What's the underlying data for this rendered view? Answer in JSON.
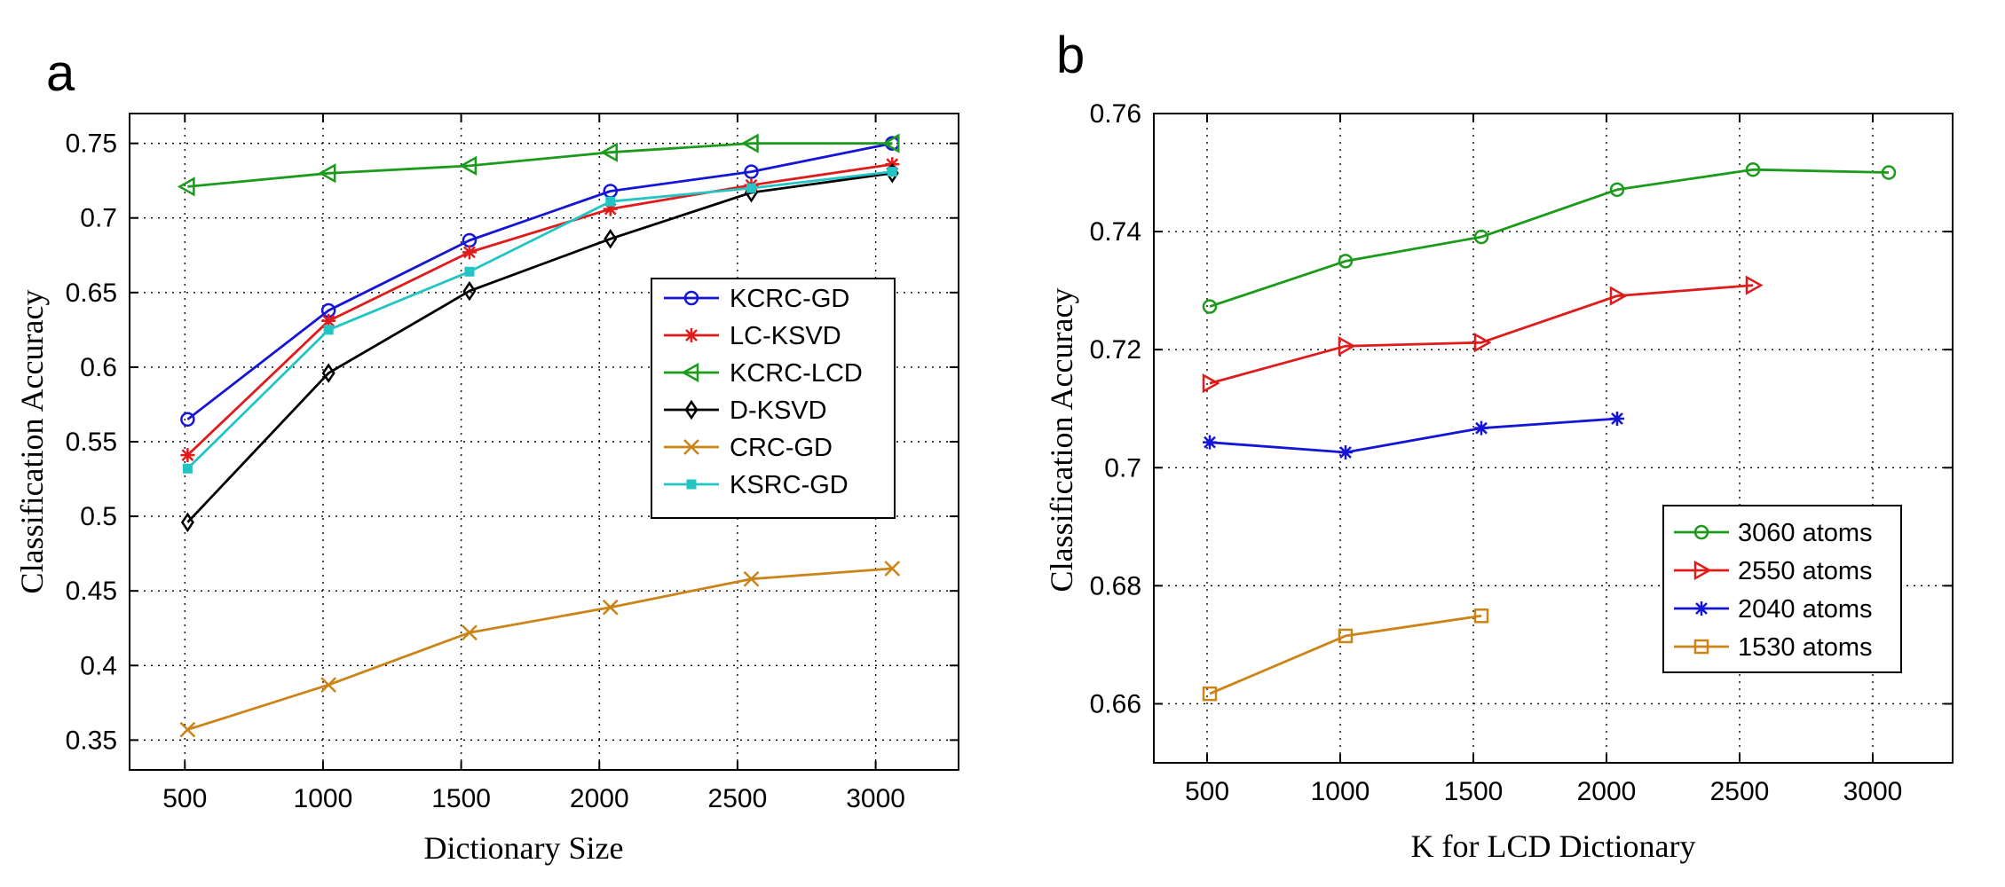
{
  "chart_data": [
    {
      "panel_label": "a",
      "type": "line",
      "title": "",
      "xlabel": "Dictionary Size",
      "ylabel": "Classification Accuracy",
      "xlim": [
        300,
        3300
      ],
      "ylim": [
        0.33,
        0.77
      ],
      "xticks": [
        500,
        1000,
        1500,
        2000,
        2500,
        3000
      ],
      "xtick_labels": [
        "500",
        "1000",
        "1500",
        "2000",
        "2500",
        "3000"
      ],
      "yticks": [
        0.35,
        0.4,
        0.45,
        0.5,
        0.55,
        0.6,
        0.65,
        0.7,
        0.75
      ],
      "ytick_labels": [
        "0.35",
        "0.4",
        "0.45",
        "0.5",
        "0.55",
        "0.6",
        "0.65",
        "0.7",
        "0.75"
      ],
      "grid": true,
      "legend_position": "center-right",
      "series": [
        {
          "name": "KCRC-GD",
          "color": "#1515d8",
          "marker": "circle",
          "x": [
            510,
            1020,
            1530,
            2040,
            2550,
            3060
          ],
          "values": [
            0.565,
            0.638,
            0.685,
            0.718,
            0.731,
            0.75
          ]
        },
        {
          "name": "LC-KSVD",
          "color": "#e01b1b",
          "marker": "star",
          "x": [
            510,
            1020,
            1530,
            2040,
            2550,
            3060
          ],
          "values": [
            0.541,
            0.631,
            0.677,
            0.706,
            0.722,
            0.736
          ]
        },
        {
          "name": "KCRC-LCD",
          "color": "#1b9a1b",
          "marker": "triangle-left",
          "x": [
            510,
            1020,
            1530,
            2040,
            2550,
            3060
          ],
          "values": [
            0.721,
            0.73,
            0.735,
            0.744,
            0.75,
            0.75
          ]
        },
        {
          "name": "D-KSVD",
          "color": "#000000",
          "marker": "diamond",
          "x": [
            510,
            1020,
            1530,
            2040,
            2550,
            3060
          ],
          "values": [
            0.496,
            0.596,
            0.651,
            0.686,
            0.717,
            0.73
          ]
        },
        {
          "name": "CRC-GD",
          "color": "#cc8418",
          "marker": "x",
          "x": [
            510,
            1020,
            1530,
            2040,
            2550,
            3060
          ],
          "values": [
            0.357,
            0.387,
            0.422,
            0.439,
            0.458,
            0.465
          ]
        },
        {
          "name": "KSRC-GD",
          "color": "#22c4c4",
          "marker": "square-filled",
          "x": [
            510,
            1020,
            1530,
            2040,
            2550,
            3060
          ],
          "values": [
            0.532,
            0.625,
            0.664,
            0.711,
            0.72,
            0.731
          ]
        }
      ]
    },
    {
      "panel_label": "b",
      "type": "line",
      "title": "",
      "xlabel": "K for LCD Dictionary",
      "ylabel": "Classification Accuracy",
      "xlim": [
        300,
        3300
      ],
      "ylim": [
        0.65,
        0.76
      ],
      "xticks": [
        500,
        1000,
        1500,
        2000,
        2500,
        3000
      ],
      "xtick_labels": [
        "500",
        "1000",
        "1500",
        "2000",
        "2500",
        "3000"
      ],
      "yticks": [
        0.66,
        0.68,
        0.7,
        0.72,
        0.74,
        0.76
      ],
      "ytick_labels": [
        "0.66",
        "0.68",
        "0.7",
        "0.72",
        "0.74",
        "0.76"
      ],
      "grid": true,
      "legend_position": "lower-right",
      "series": [
        {
          "name": "3060 atoms",
          "color": "#1b9a1b",
          "marker": "circle",
          "x": [
            510,
            1020,
            1530,
            2040,
            2550,
            3060
          ],
          "values": [
            0.7273,
            0.735,
            0.7391,
            0.7471,
            0.7505,
            0.75
          ]
        },
        {
          "name": "2550 atoms",
          "color": "#e01b1b",
          "marker": "triangle-right",
          "x": [
            510,
            1020,
            1530,
            2040,
            2550
          ],
          "values": [
            0.7143,
            0.7206,
            0.7212,
            0.7291,
            0.7309
          ]
        },
        {
          "name": "2040 atoms",
          "color": "#1515d8",
          "marker": "star",
          "x": [
            510,
            1020,
            1530,
            2040
          ],
          "values": [
            0.7043,
            0.7026,
            0.7067,
            0.7083
          ]
        },
        {
          "name": "1530 atoms",
          "color": "#cc8418",
          "marker": "square",
          "x": [
            510,
            1020,
            1530
          ],
          "values": [
            0.6617,
            0.6715,
            0.6749
          ]
        }
      ]
    }
  ]
}
